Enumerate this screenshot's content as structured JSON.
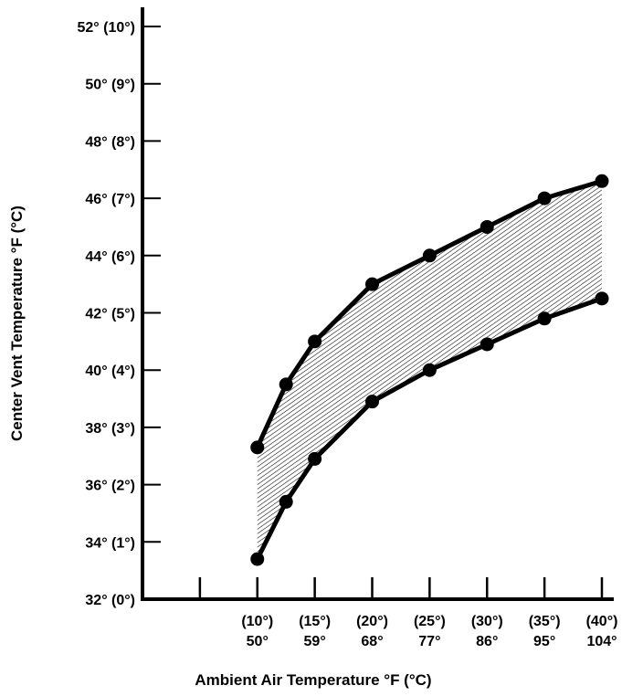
{
  "chart_data": {
    "type": "area",
    "xlabel": "Ambient Air Temperature °F (°C)",
    "ylabel": "Center Vent Temperature °F (°C)",
    "xlim": [
      32,
      104
    ],
    "ylim": [
      32,
      52
    ],
    "y_ticks": [
      {
        "value": 32,
        "label": "32° (0°)"
      },
      {
        "value": 34,
        "label": "34° (1°)"
      },
      {
        "value": 36,
        "label": "36° (2°)"
      },
      {
        "value": 38,
        "label": "38° (3°)"
      },
      {
        "value": 40,
        "label": "40° (4°)"
      },
      {
        "value": 42,
        "label": "42° (5°)"
      },
      {
        "value": 44,
        "label": "44° (6°)"
      },
      {
        "value": 46,
        "label": "46° (7°)"
      },
      {
        "value": 48,
        "label": "48° (8°)"
      },
      {
        "value": 50,
        "label": "50° (9°)"
      },
      {
        "value": 52,
        "label": "52° (10°)"
      }
    ],
    "x_ticks": [
      {
        "value": 41,
        "celsius": "",
        "fahrenheit": ""
      },
      {
        "value": 50,
        "celsius": "(10°)",
        "fahrenheit": "50°"
      },
      {
        "value": 59,
        "celsius": "(15°)",
        "fahrenheit": "59°"
      },
      {
        "value": 68,
        "celsius": "(20°)",
        "fahrenheit": "68°"
      },
      {
        "value": 77,
        "celsius": "(25°)",
        "fahrenheit": "77°"
      },
      {
        "value": 86,
        "celsius": "(30°)",
        "fahrenheit": "86°"
      },
      {
        "value": 95,
        "celsius": "(35°)",
        "fahrenheit": "95°"
      },
      {
        "value": 104,
        "celsius": "(40°)",
        "fahrenheit": "104°"
      }
    ],
    "series": [
      {
        "x": [
          50,
          54.5,
          59,
          68,
          77,
          86,
          95,
          104
        ],
        "y": [
          37.3,
          39.5,
          41,
          43,
          44,
          45,
          46,
          46.6
        ]
      },
      {
        "x": [
          50,
          54.5,
          59,
          68,
          77,
          86,
          95,
          104
        ],
        "y": [
          33.4,
          35.4,
          36.9,
          38.9,
          40,
          40.9,
          41.8,
          42.5
        ]
      }
    ],
    "band_fill": "hatched",
    "grid": false,
    "colors": {
      "line": "#000000",
      "hatch": "#000000",
      "background": "#ffffff"
    }
  }
}
